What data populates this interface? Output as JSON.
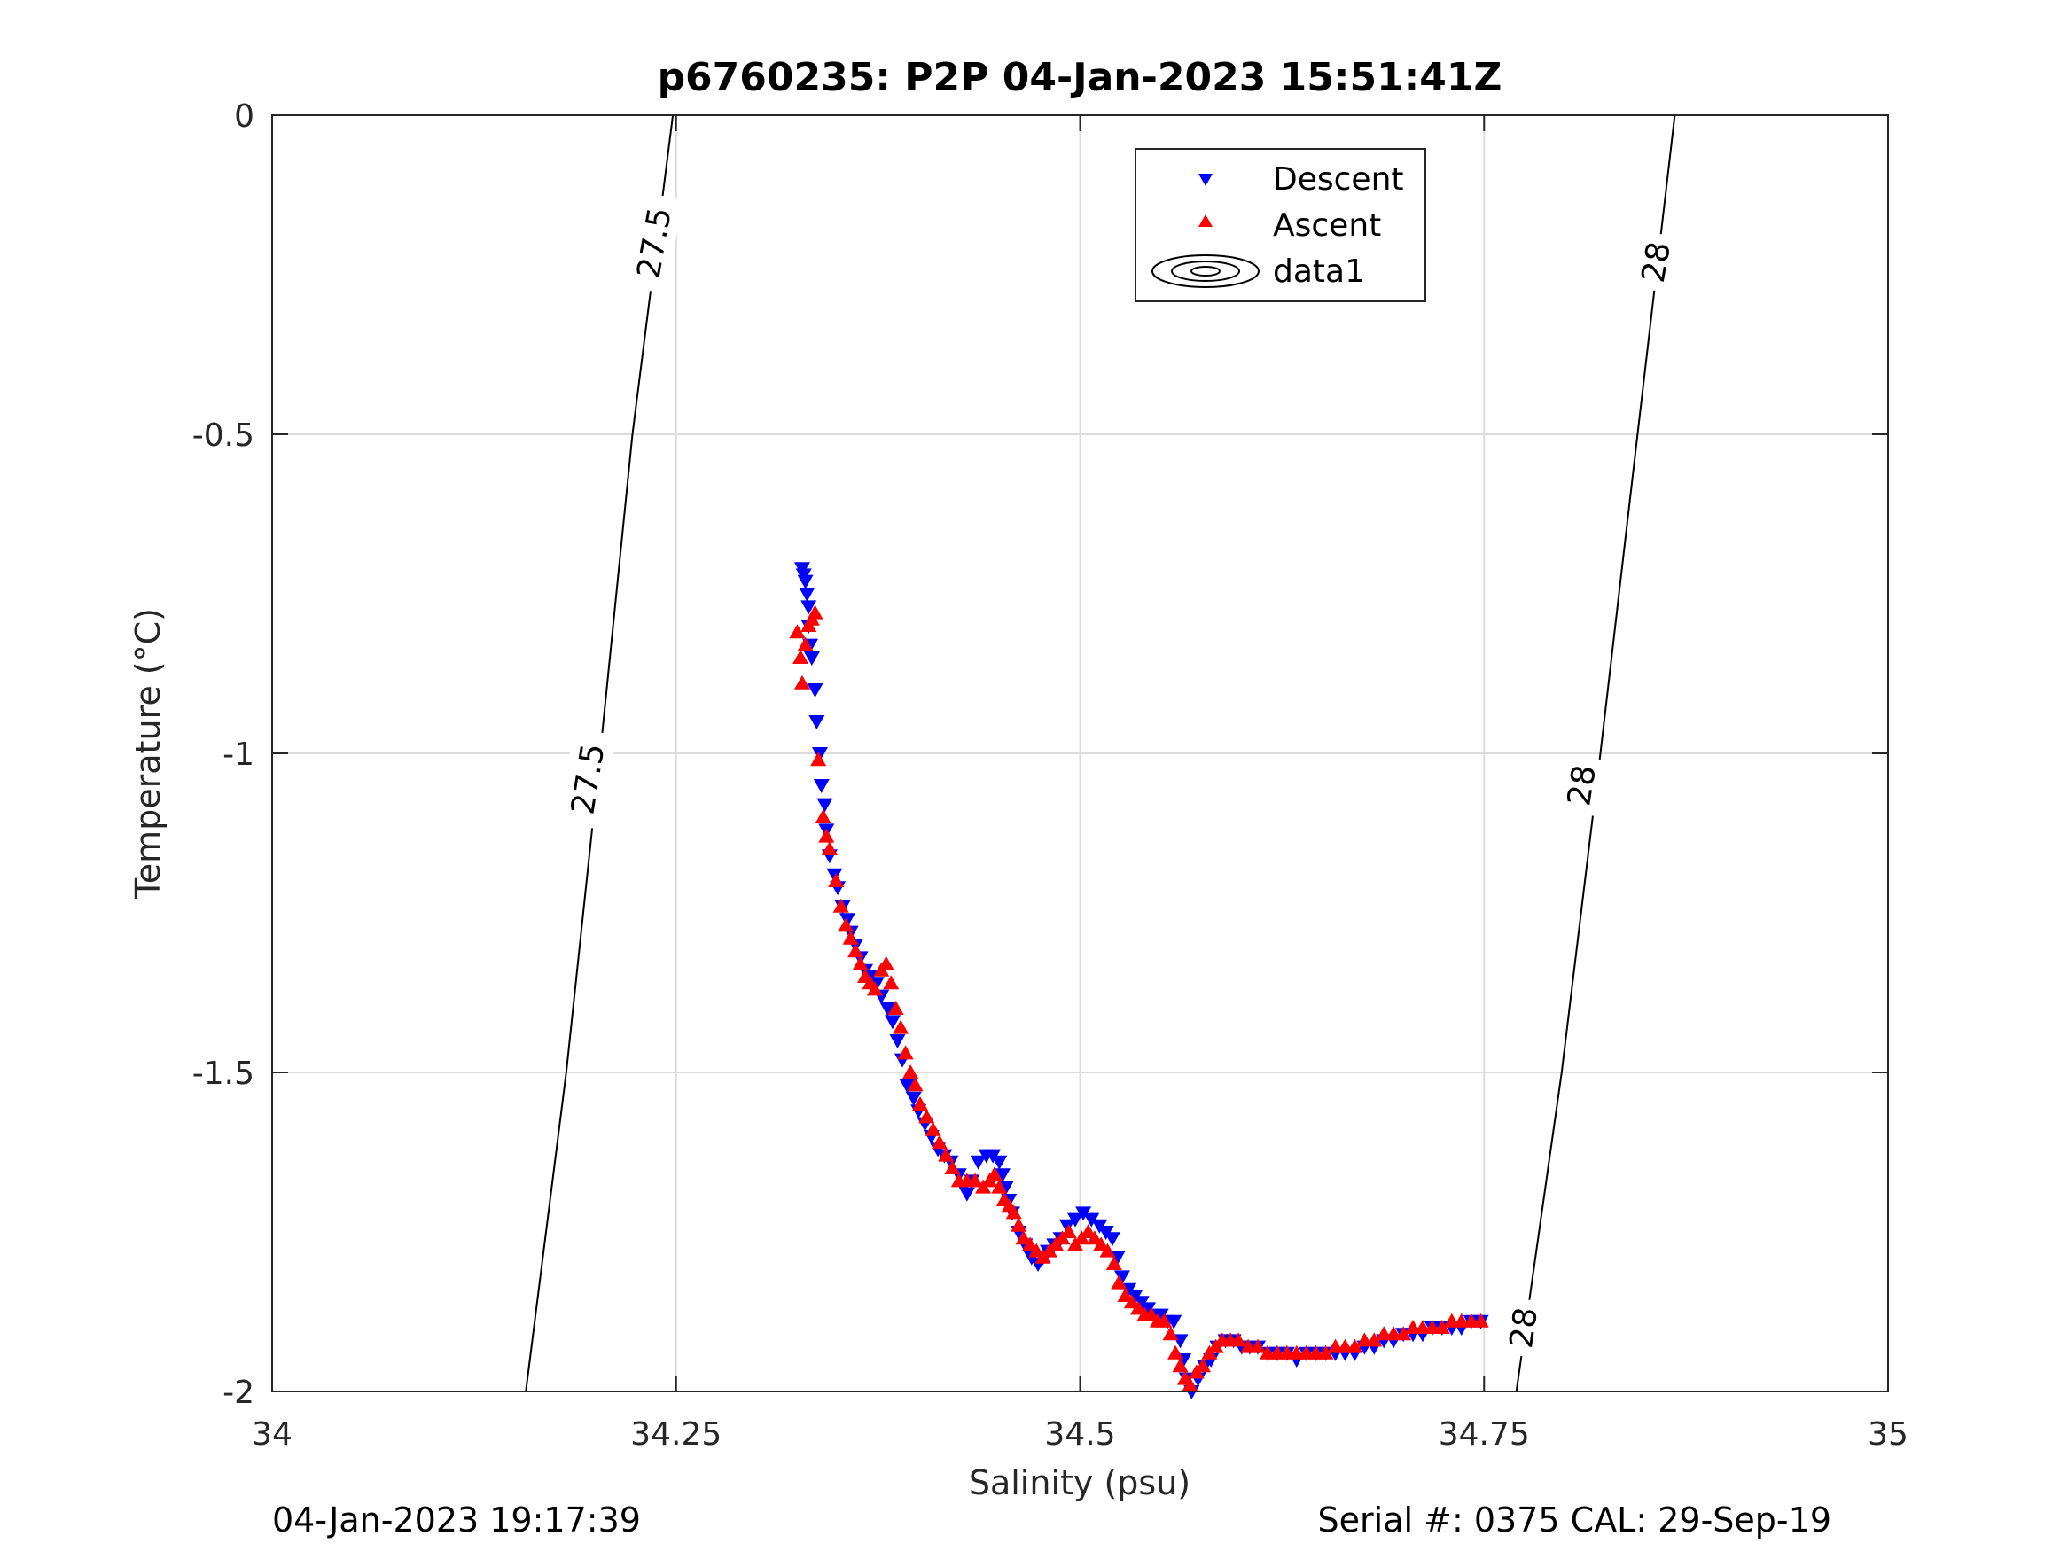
{
  "chart_data": {
    "type": "scatter",
    "title": "p6760235: P2P 04-Jan-2023 15:51:41Z",
    "xlabel": "Salinity (psu)",
    "ylabel": "Temperature (°C)",
    "xlim": [
      34,
      35
    ],
    "ylim": [
      -2,
      0
    ],
    "xticks": [
      "34",
      "34.25",
      "34.5",
      "34.75",
      "35"
    ],
    "yticks": [
      "0",
      "-0.5",
      "-1",
      "-1.5",
      "-2"
    ],
    "grid": true,
    "legend_position": "top-center",
    "legend": [
      "Descent",
      "Ascent",
      "data1"
    ],
    "contours": [
      {
        "label": "27.5",
        "points": [
          [
            34.157,
            -2.0
          ],
          [
            34.182,
            -1.5
          ],
          [
            34.203,
            -1.0
          ],
          [
            34.223,
            -0.5
          ],
          [
            34.248,
            0.0
          ]
        ]
      },
      {
        "label": "28",
        "points": [
          [
            34.77,
            -2.0
          ],
          [
            34.798,
            -1.5
          ],
          [
            34.822,
            -1.0
          ],
          [
            34.845,
            -0.5
          ],
          [
            34.868,
            0.0
          ]
        ]
      }
    ],
    "contour_labels": [
      {
        "text": "27.5",
        "at": [
          34.236,
          -0.2
        ],
        "angle": -80
      },
      {
        "text": "27.5",
        "at": [
          34.195,
          -1.04
        ],
        "angle": -81
      },
      {
        "text": "28",
        "at": [
          34.856,
          -0.23
        ],
        "angle": -80
      },
      {
        "text": "28",
        "at": [
          34.81,
          -1.05
        ],
        "angle": -81
      },
      {
        "text": "28",
        "at": [
          34.774,
          -1.9
        ],
        "angle": -82
      }
    ],
    "series": [
      {
        "name": "Descent",
        "color": "#0000ff",
        "marker": "triangle-down",
        "points": [
          [
            34.328,
            -0.71
          ],
          [
            34.329,
            -0.72
          ],
          [
            34.33,
            -0.73
          ],
          [
            34.331,
            -0.75
          ],
          [
            34.332,
            -0.77
          ],
          [
            34.332,
            -0.8
          ],
          [
            34.333,
            -0.83
          ],
          [
            34.334,
            -0.85
          ],
          [
            34.336,
            -0.9
          ],
          [
            34.337,
            -0.95
          ],
          [
            34.339,
            -1.0
          ],
          [
            34.34,
            -1.05
          ],
          [
            34.342,
            -1.08
          ],
          [
            34.343,
            -1.12
          ],
          [
            34.345,
            -1.16
          ],
          [
            34.348,
            -1.19
          ],
          [
            34.35,
            -1.21
          ],
          [
            34.353,
            -1.24
          ],
          [
            34.356,
            -1.26
          ],
          [
            34.358,
            -1.28
          ],
          [
            34.361,
            -1.3
          ],
          [
            34.364,
            -1.32
          ],
          [
            34.367,
            -1.34
          ],
          [
            34.37,
            -1.35
          ],
          [
            34.374,
            -1.36
          ],
          [
            34.377,
            -1.38
          ],
          [
            34.381,
            -1.4
          ],
          [
            34.384,
            -1.42
          ],
          [
            34.387,
            -1.45
          ],
          [
            34.39,
            -1.48
          ],
          [
            34.393,
            -1.52
          ],
          [
            34.397,
            -1.54
          ],
          [
            34.4,
            -1.56
          ],
          [
            34.404,
            -1.58
          ],
          [
            34.408,
            -1.6
          ],
          [
            34.412,
            -1.62
          ],
          [
            34.416,
            -1.63
          ],
          [
            34.42,
            -1.64
          ],
          [
            34.425,
            -1.66
          ],
          [
            34.428,
            -1.68
          ],
          [
            34.43,
            -1.69
          ],
          [
            34.433,
            -1.67
          ],
          [
            34.437,
            -1.64
          ],
          [
            34.442,
            -1.63
          ],
          [
            34.446,
            -1.63
          ],
          [
            34.45,
            -1.64
          ],
          [
            34.452,
            -1.66
          ],
          [
            34.454,
            -1.68
          ],
          [
            34.456,
            -1.7
          ],
          [
            34.458,
            -1.72
          ],
          [
            34.462,
            -1.75
          ],
          [
            34.466,
            -1.77
          ],
          [
            34.47,
            -1.79
          ],
          [
            34.474,
            -1.8
          ],
          [
            34.477,
            -1.79
          ],
          [
            34.48,
            -1.78
          ],
          [
            34.484,
            -1.77
          ],
          [
            34.488,
            -1.76
          ],
          [
            34.492,
            -1.74
          ],
          [
            34.497,
            -1.73
          ],
          [
            34.502,
            -1.72
          ],
          [
            34.507,
            -1.73
          ],
          [
            34.512,
            -1.74
          ],
          [
            34.516,
            -1.75
          ],
          [
            34.52,
            -1.76
          ],
          [
            34.523,
            -1.79
          ],
          [
            34.526,
            -1.82
          ],
          [
            34.53,
            -1.84
          ],
          [
            34.534,
            -1.85
          ],
          [
            34.538,
            -1.86
          ],
          [
            34.542,
            -1.87
          ],
          [
            34.546,
            -1.88
          ],
          [
            34.55,
            -1.88
          ],
          [
            34.554,
            -1.89
          ],
          [
            34.558,
            -1.89
          ],
          [
            34.562,
            -1.92
          ],
          [
            34.564,
            -1.95
          ],
          [
            34.566,
            -1.98
          ],
          [
            34.569,
            -2.0
          ],
          [
            34.573,
            -1.98
          ],
          [
            34.577,
            -1.96
          ],
          [
            34.581,
            -1.95
          ],
          [
            34.585,
            -1.93
          ],
          [
            34.59,
            -1.92
          ],
          [
            34.595,
            -1.92
          ],
          [
            34.6,
            -1.93
          ],
          [
            34.605,
            -1.93
          ],
          [
            34.61,
            -1.93
          ],
          [
            34.616,
            -1.94
          ],
          [
            34.622,
            -1.94
          ],
          [
            34.628,
            -1.94
          ],
          [
            34.634,
            -1.95
          ],
          [
            34.64,
            -1.94
          ],
          [
            34.646,
            -1.94
          ],
          [
            34.652,
            -1.94
          ],
          [
            34.658,
            -1.94
          ],
          [
            34.664,
            -1.94
          ],
          [
            34.67,
            -1.94
          ],
          [
            34.676,
            -1.93
          ],
          [
            34.682,
            -1.93
          ],
          [
            34.688,
            -1.92
          ],
          [
            34.694,
            -1.92
          ],
          [
            34.7,
            -1.91
          ],
          [
            34.706,
            -1.91
          ],
          [
            34.712,
            -1.91
          ],
          [
            34.718,
            -1.9
          ],
          [
            34.724,
            -1.9
          ],
          [
            34.73,
            -1.9
          ],
          [
            34.736,
            -1.9
          ],
          [
            34.742,
            -1.89
          ],
          [
            34.748,
            -1.89
          ]
        ]
      },
      {
        "name": "Ascent",
        "color": "#ff0000",
        "marker": "triangle-up",
        "points": [
          [
            34.325,
            -0.81
          ],
          [
            34.327,
            -0.85
          ],
          [
            34.328,
            -0.89
          ],
          [
            34.33,
            -0.83
          ],
          [
            34.332,
            -0.8
          ],
          [
            34.334,
            -0.79
          ],
          [
            34.336,
            -0.78
          ],
          [
            34.338,
            -1.01
          ],
          [
            34.341,
            -1.1
          ],
          [
            34.343,
            -1.13
          ],
          [
            34.345,
            -1.15
          ],
          [
            34.349,
            -1.2
          ],
          [
            34.352,
            -1.24
          ],
          [
            34.355,
            -1.27
          ],
          [
            34.358,
            -1.29
          ],
          [
            34.361,
            -1.31
          ],
          [
            34.364,
            -1.33
          ],
          [
            34.367,
            -1.35
          ],
          [
            34.37,
            -1.36
          ],
          [
            34.373,
            -1.37
          ],
          [
            34.377,
            -1.34
          ],
          [
            34.38,
            -1.33
          ],
          [
            34.383,
            -1.36
          ],
          [
            34.386,
            -1.4
          ],
          [
            34.389,
            -1.43
          ],
          [
            34.392,
            -1.47
          ],
          [
            34.395,
            -1.5
          ],
          [
            34.398,
            -1.52
          ],
          [
            34.401,
            -1.55
          ],
          [
            34.405,
            -1.57
          ],
          [
            34.409,
            -1.59
          ],
          [
            34.413,
            -1.61
          ],
          [
            34.417,
            -1.63
          ],
          [
            34.421,
            -1.65
          ],
          [
            34.425,
            -1.67
          ],
          [
            34.43,
            -1.67
          ],
          [
            34.435,
            -1.67
          ],
          [
            34.44,
            -1.68
          ],
          [
            34.444,
            -1.67
          ],
          [
            34.447,
            -1.66
          ],
          [
            34.45,
            -1.68
          ],
          [
            34.453,
            -1.7
          ],
          [
            34.456,
            -1.71
          ],
          [
            34.459,
            -1.72
          ],
          [
            34.462,
            -1.74
          ],
          [
            34.465,
            -1.76
          ],
          [
            34.469,
            -1.77
          ],
          [
            34.473,
            -1.78
          ],
          [
            34.477,
            -1.79
          ],
          [
            34.481,
            -1.78
          ],
          [
            34.485,
            -1.77
          ],
          [
            34.489,
            -1.76
          ],
          [
            34.493,
            -1.75
          ],
          [
            34.497,
            -1.77
          ],
          [
            34.501,
            -1.76
          ],
          [
            34.505,
            -1.75
          ],
          [
            34.509,
            -1.76
          ],
          [
            34.513,
            -1.77
          ],
          [
            34.517,
            -1.78
          ],
          [
            34.521,
            -1.8
          ],
          [
            34.524,
            -1.83
          ],
          [
            34.528,
            -1.85
          ],
          [
            34.532,
            -1.86
          ],
          [
            34.536,
            -1.87
          ],
          [
            34.54,
            -1.88
          ],
          [
            34.544,
            -1.88
          ],
          [
            34.548,
            -1.89
          ],
          [
            34.552,
            -1.89
          ],
          [
            34.556,
            -1.91
          ],
          [
            34.559,
            -1.94
          ],
          [
            34.562,
            -1.96
          ],
          [
            34.565,
            -1.98
          ],
          [
            34.568,
            -1.99
          ],
          [
            34.572,
            -1.97
          ],
          [
            34.576,
            -1.96
          ],
          [
            34.58,
            -1.94
          ],
          [
            34.584,
            -1.93
          ],
          [
            34.588,
            -1.92
          ],
          [
            34.593,
            -1.92
          ],
          [
            34.598,
            -1.92
          ],
          [
            34.604,
            -1.93
          ],
          [
            34.61,
            -1.93
          ],
          [
            34.616,
            -1.94
          ],
          [
            34.622,
            -1.94
          ],
          [
            34.628,
            -1.94
          ],
          [
            34.634,
            -1.94
          ],
          [
            34.64,
            -1.94
          ],
          [
            34.646,
            -1.94
          ],
          [
            34.652,
            -1.94
          ],
          [
            34.658,
            -1.93
          ],
          [
            34.664,
            -1.93
          ],
          [
            34.67,
            -1.93
          ],
          [
            34.676,
            -1.92
          ],
          [
            34.682,
            -1.92
          ],
          [
            34.688,
            -1.91
          ],
          [
            34.694,
            -1.91
          ],
          [
            34.7,
            -1.91
          ],
          [
            34.706,
            -1.9
          ],
          [
            34.712,
            -1.9
          ],
          [
            34.718,
            -1.9
          ],
          [
            34.724,
            -1.9
          ],
          [
            34.73,
            -1.89
          ],
          [
            34.736,
            -1.89
          ],
          [
            34.742,
            -1.89
          ],
          [
            34.748,
            -1.89
          ]
        ]
      }
    ]
  },
  "footer": {
    "left": "04-Jan-2023 19:17:39",
    "right": "Serial #: 0375  CAL: 29-Sep-19"
  }
}
